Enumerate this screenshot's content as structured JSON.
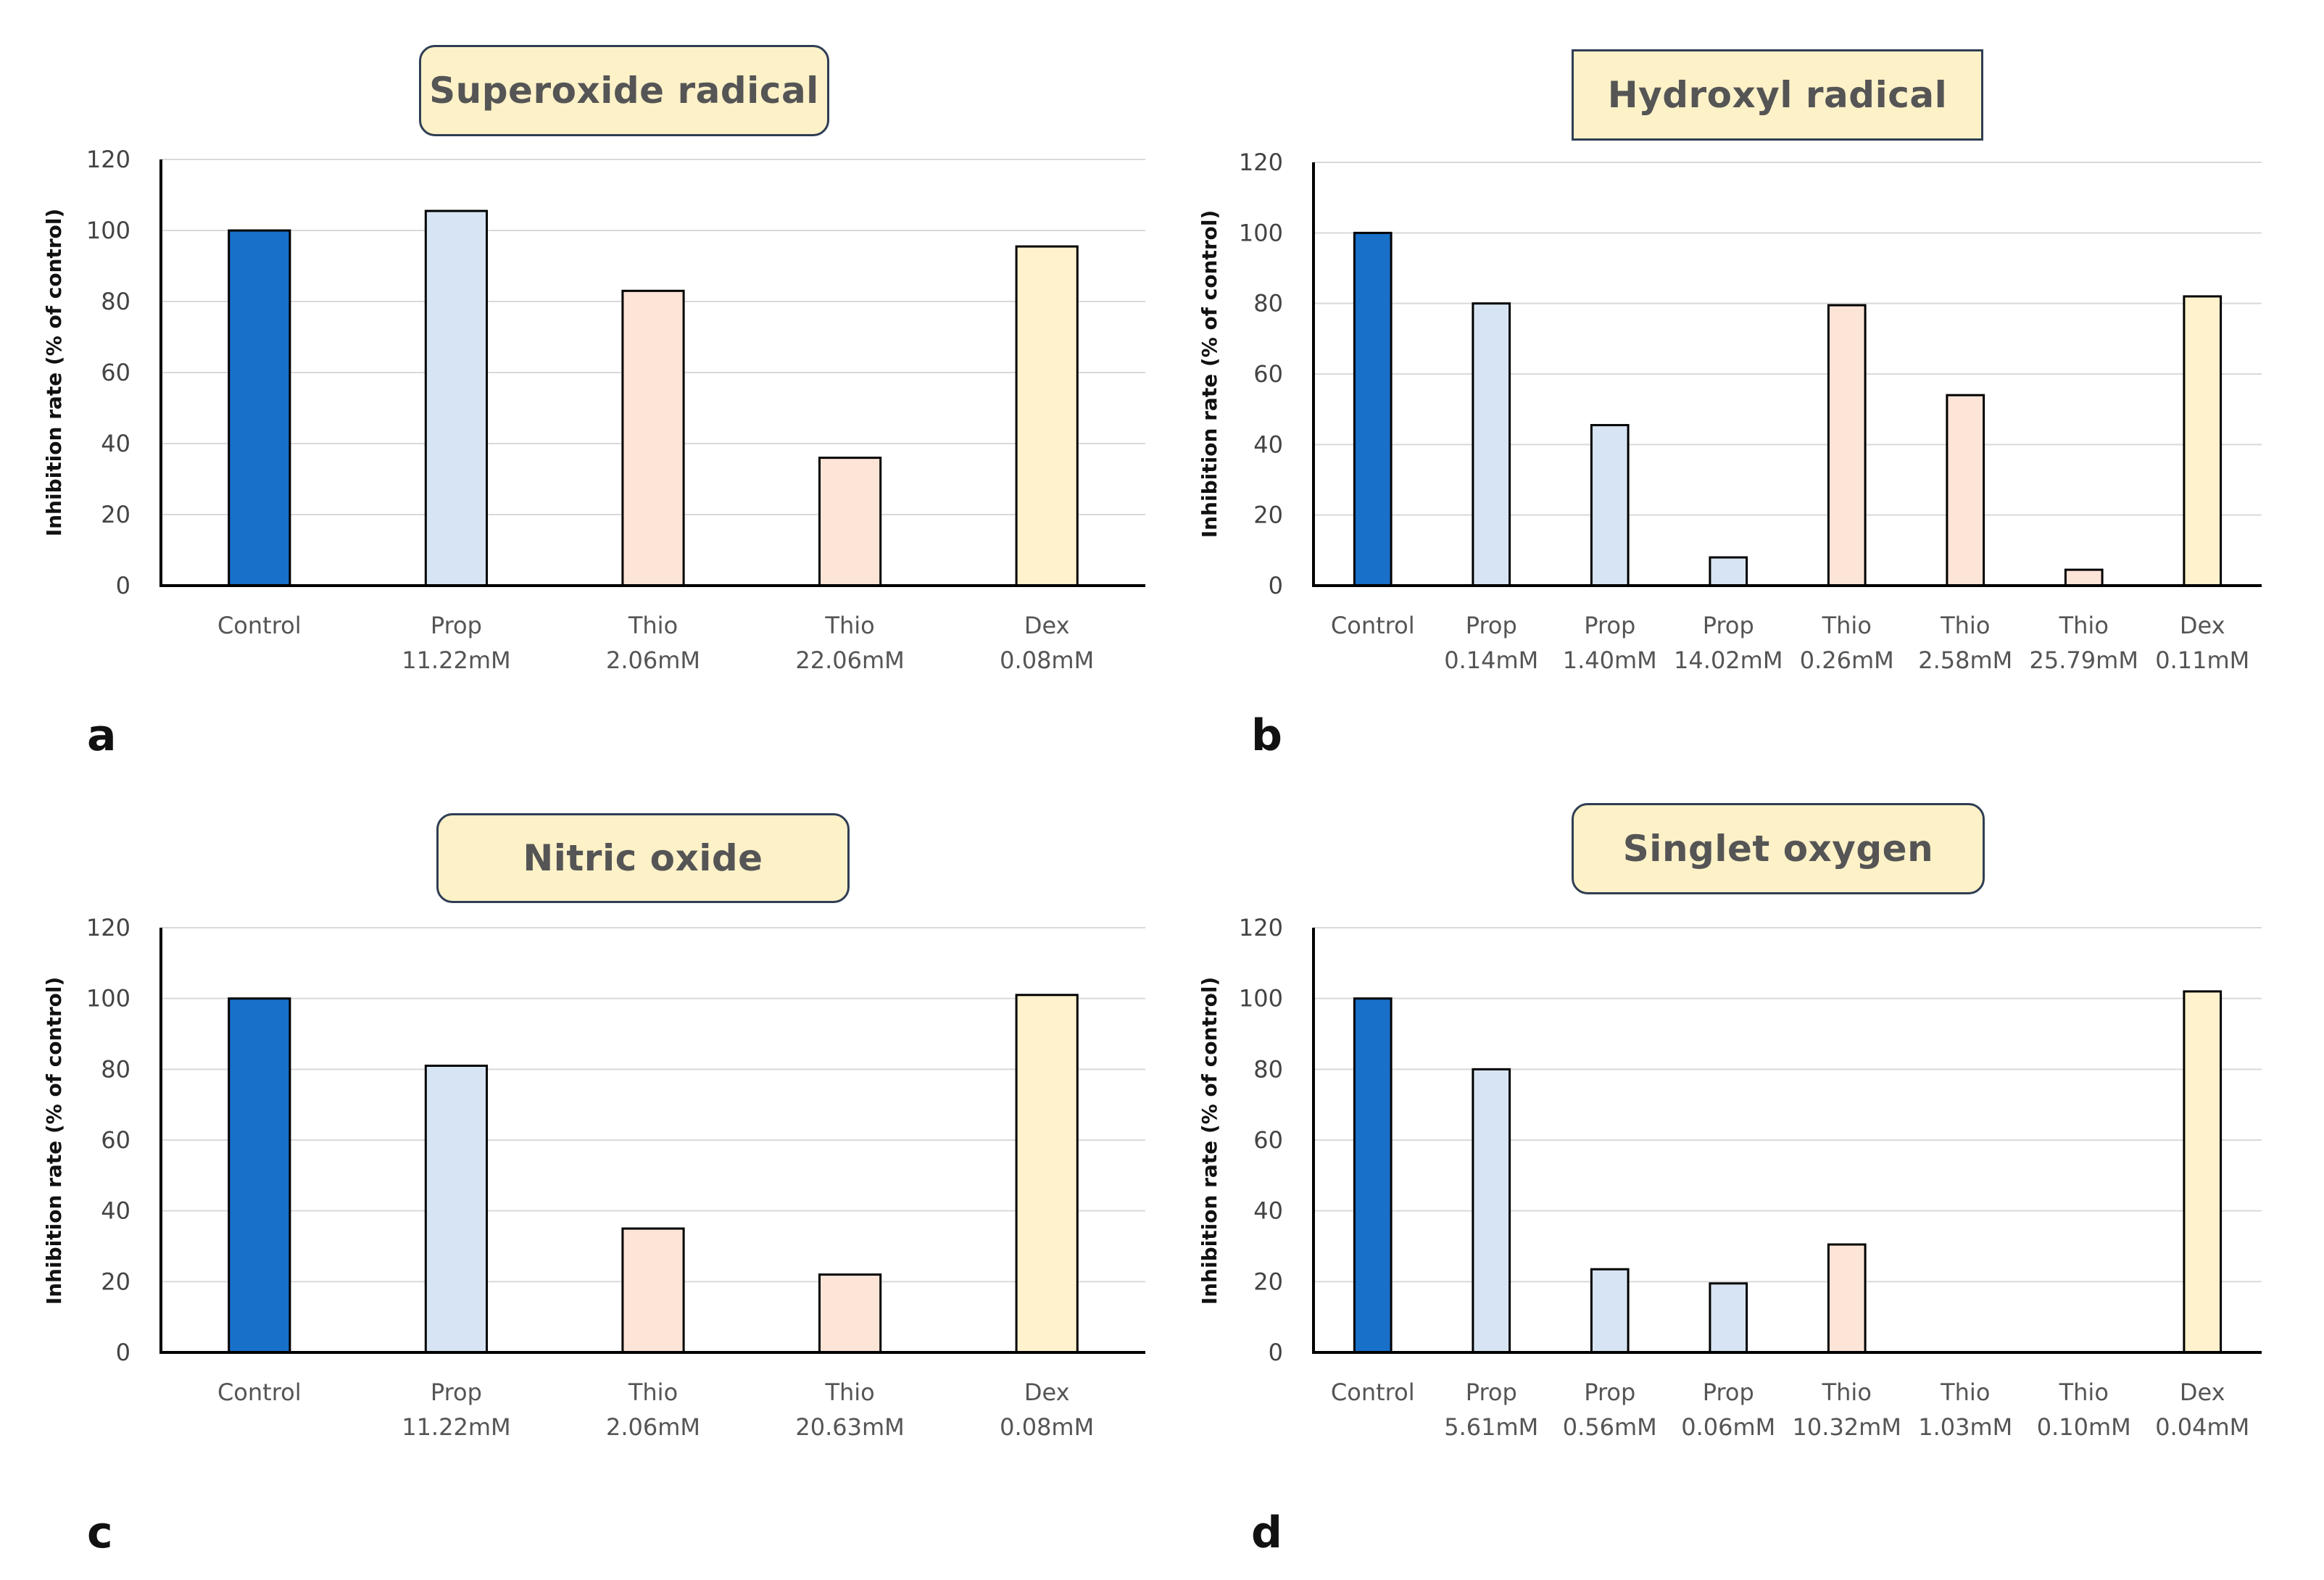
{
  "colors": {
    "control": "#1870c8",
    "prop": "#d7e4f4",
    "thio": "#fce4d6",
    "dex": "#fff2cc",
    "title_bg": "#fdf1c8",
    "grid": "#d9d9d9",
    "axis": "#000000"
  },
  "chart_data": [
    {
      "panel": "a",
      "type": "bar",
      "title": "Superoxide radical",
      "ylabel": "Inhibition rate (% of control)",
      "ylim": [
        0,
        120
      ],
      "yticks": [
        "0",
        "20",
        "40",
        "60",
        "80",
        "100",
        "120"
      ],
      "grid": true,
      "categories": [
        {
          "line1": "Control",
          "line2": ""
        },
        {
          "line1": "Prop",
          "line2": "11.22mM"
        },
        {
          "line1": "Thio",
          "line2": "2.06mM"
        },
        {
          "line1": "Thio",
          "line2": "22.06mM"
        },
        {
          "line1": "Dex",
          "line2": "0.08mM"
        }
      ],
      "values": [
        100,
        105.5,
        83,
        36,
        95.5
      ],
      "groups": [
        "control",
        "prop",
        "thio",
        "thio",
        "dex"
      ]
    },
    {
      "panel": "b",
      "type": "bar",
      "title": "Hydroxyl radical",
      "ylabel": "Inhibition rate (% of control)",
      "ylim": [
        0,
        120
      ],
      "yticks": [
        "0",
        "20",
        "40",
        "60",
        "80",
        "100",
        "120"
      ],
      "grid": true,
      "categories": [
        {
          "line1": "Control",
          "line2": ""
        },
        {
          "line1": "Prop",
          "line2": "0.14mM"
        },
        {
          "line1": "Prop",
          "line2": "1.40mM"
        },
        {
          "line1": "Prop",
          "line2": "14.02mM"
        },
        {
          "line1": "Thio",
          "line2": "0.26mM"
        },
        {
          "line1": "Thio",
          "line2": "2.58mM"
        },
        {
          "line1": "Thio",
          "line2": "25.79mM"
        },
        {
          "line1": "Dex",
          "line2": "0.11mM"
        }
      ],
      "values": [
        100,
        80,
        45.5,
        8,
        79.5,
        54,
        4.5,
        82
      ],
      "groups": [
        "control",
        "prop",
        "prop",
        "prop",
        "thio",
        "thio",
        "thio",
        "dex"
      ]
    },
    {
      "panel": "c",
      "type": "bar",
      "title": "Nitric oxide",
      "ylabel": "Inhibition rate (% of control)",
      "ylim": [
        0,
        120
      ],
      "yticks": [
        "0",
        "20",
        "40",
        "60",
        "80",
        "100",
        "120"
      ],
      "grid": true,
      "categories": [
        {
          "line1": "Control",
          "line2": ""
        },
        {
          "line1": "Prop",
          "line2": "11.22mM"
        },
        {
          "line1": "Thio",
          "line2": "2.06mM"
        },
        {
          "line1": "Thio",
          "line2": "20.63mM"
        },
        {
          "line1": "Dex",
          "line2": "0.08mM"
        }
      ],
      "values": [
        100,
        81,
        35,
        22,
        101
      ],
      "groups": [
        "control",
        "prop",
        "thio",
        "thio",
        "dex"
      ]
    },
    {
      "panel": "d",
      "type": "bar",
      "title": "Singlet oxygen",
      "ylabel": "Inhibition rate (% of control)",
      "ylim": [
        0,
        120
      ],
      "yticks": [
        "0",
        "20",
        "40",
        "60",
        "80",
        "100",
        "120"
      ],
      "grid": true,
      "categories": [
        {
          "line1": "Control",
          "line2": ""
        },
        {
          "line1": "Prop",
          "line2": "5.61mM"
        },
        {
          "line1": "Prop",
          "line2": "0.56mM"
        },
        {
          "line1": "Prop",
          "line2": "0.06mM"
        },
        {
          "line1": "Thio",
          "line2": "10.32mM"
        },
        {
          "line1": "Thio",
          "line2": "1.03mM"
        },
        {
          "line1": "Thio",
          "line2": "0.10mM"
        },
        {
          "line1": "Dex",
          "line2": "0.04mM"
        }
      ],
      "values": [
        100,
        80,
        23.5,
        19.5,
        30.5,
        0,
        0,
        102
      ],
      "groups": [
        "control",
        "prop",
        "prop",
        "prop",
        "thio",
        "thio",
        "thio",
        "dex"
      ]
    }
  ]
}
